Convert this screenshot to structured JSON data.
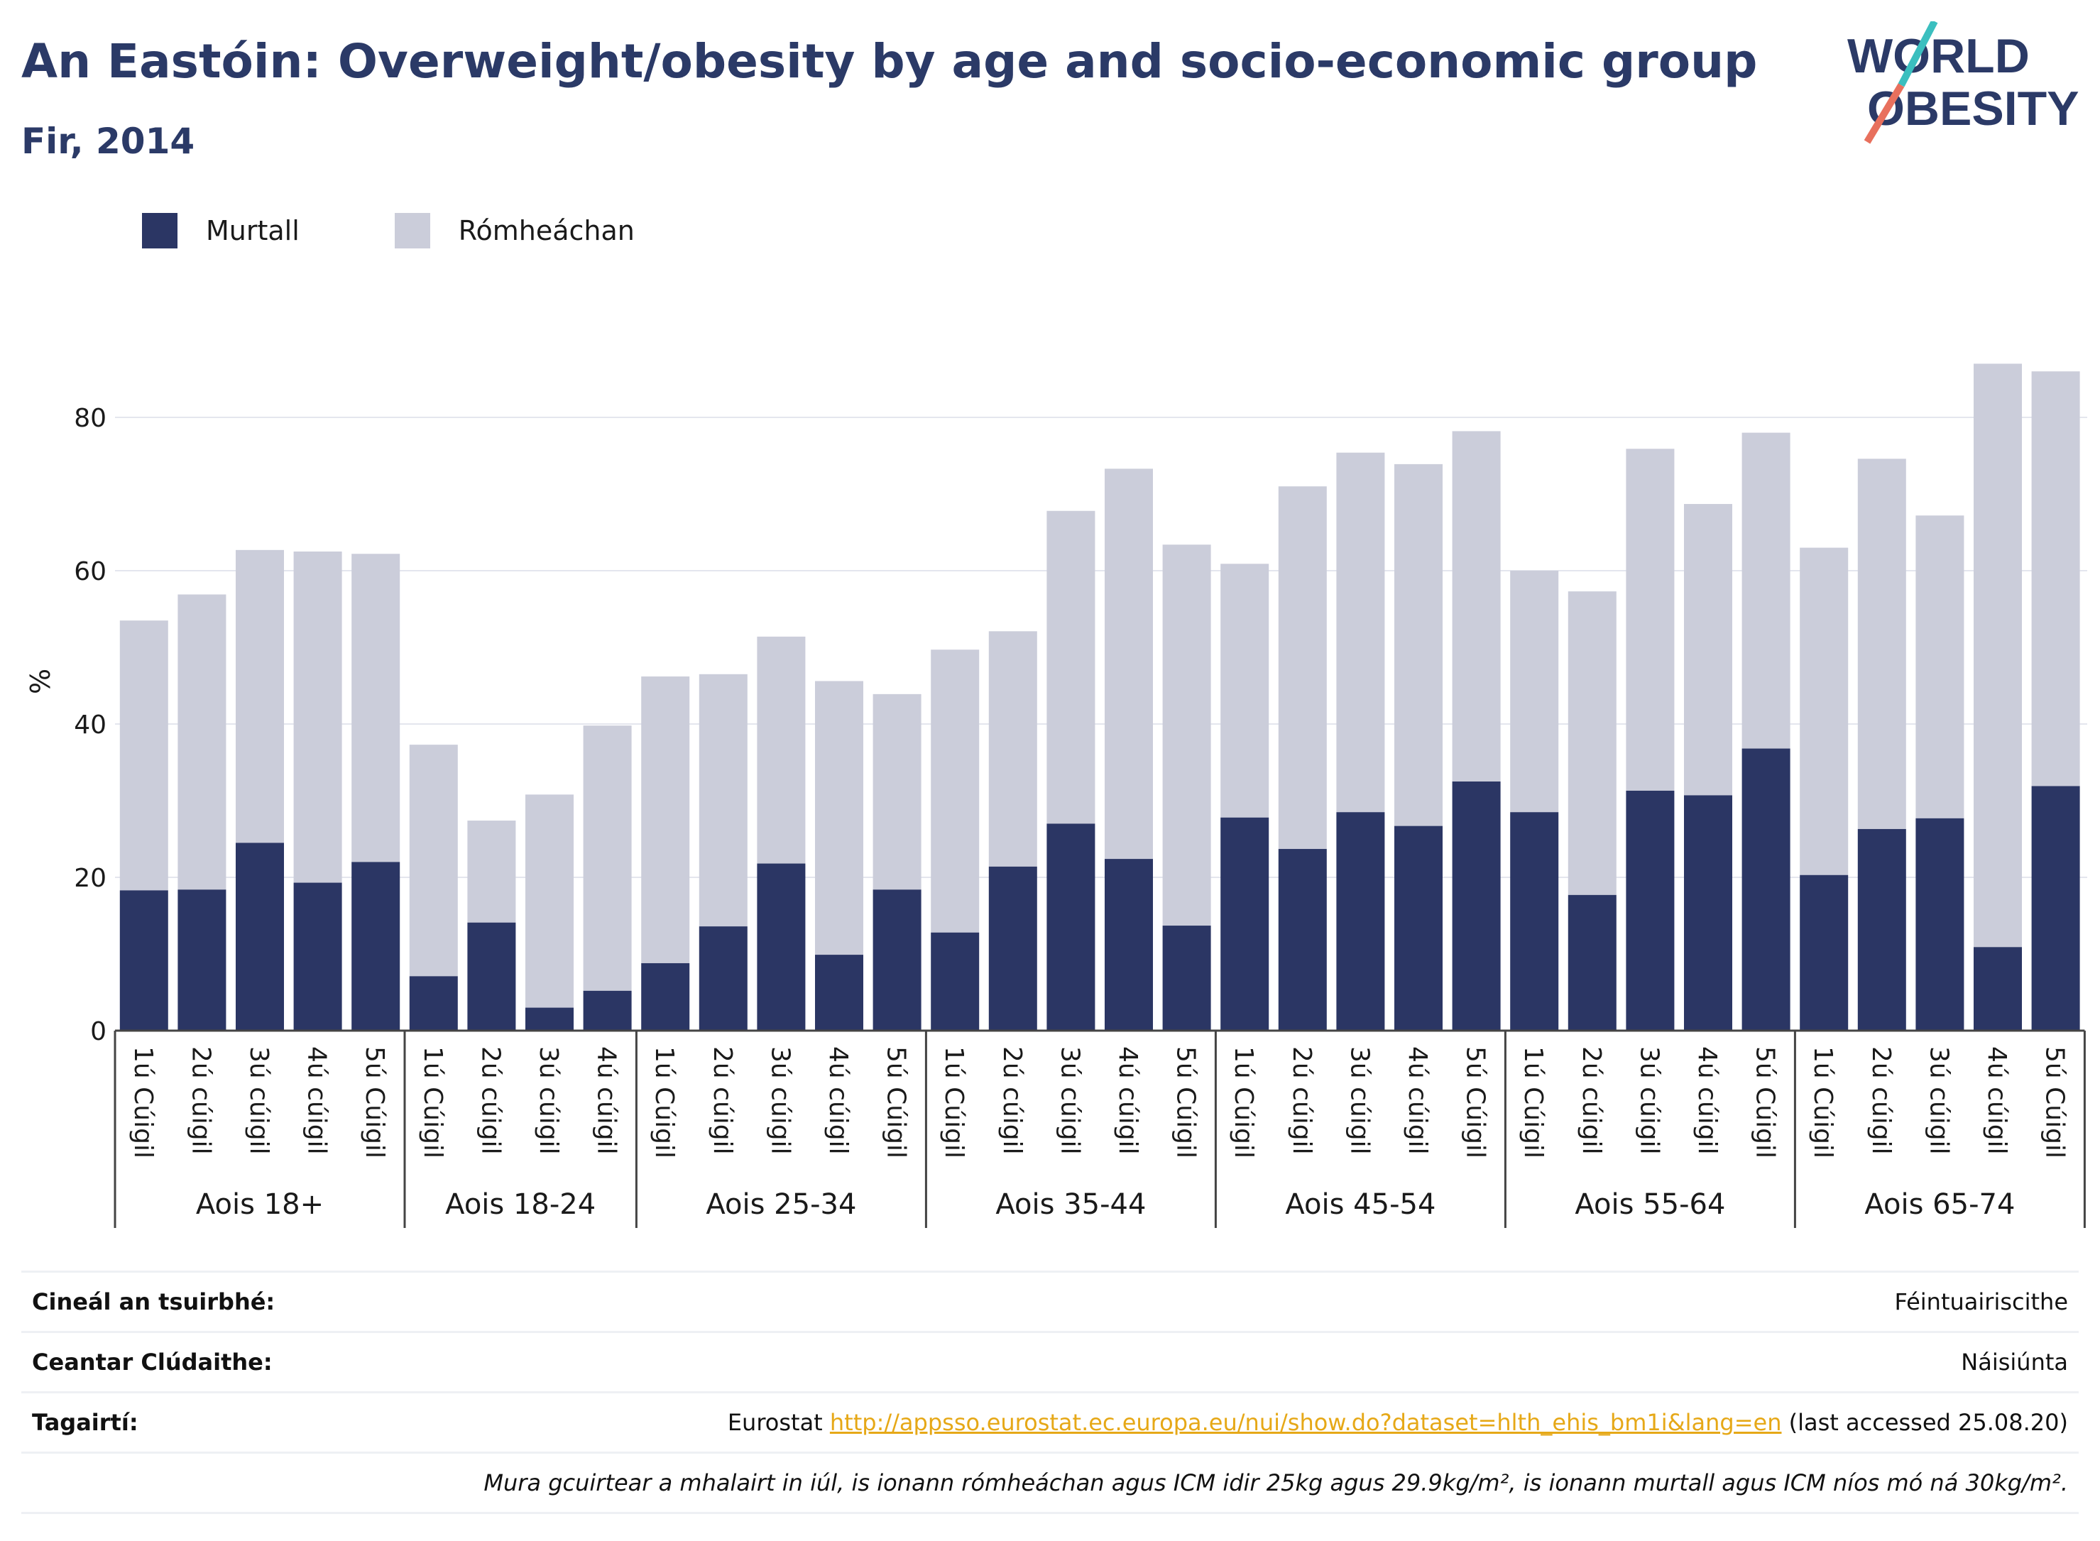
{
  "header": {
    "title": "An Eastóin: Overweight/obesity by age and socio-economic group",
    "subtitle": "Fir, 2014"
  },
  "logo": {
    "line1": "WORLD",
    "line2": "OBESITY",
    "teal": "#3bbfbf",
    "coral": "#e8705d",
    "navy": "#2b3a67"
  },
  "legend": {
    "items": [
      {
        "label": "Murtall",
        "color": "#2b3664"
      },
      {
        "label": "Rómheáchan",
        "color": "#cbcdda"
      }
    ]
  },
  "chart_data": {
    "type": "bar",
    "stacked": true,
    "ylabel": "%",
    "ylim": [
      0,
      90
    ],
    "yticks": [
      0,
      20,
      40,
      60,
      80
    ],
    "grid": true,
    "legend_position": "top-left",
    "groups": [
      {
        "label": "Aois 18+",
        "bars": [
          {
            "category": "1ú Cúigil",
            "obese": 18.3,
            "overweight": 35.2
          },
          {
            "category": "2ú cúigil",
            "obese": 18.4,
            "overweight": 38.5
          },
          {
            "category": "3ú cúigil",
            "obese": 24.5,
            "overweight": 38.2
          },
          {
            "category": "4ú cúigil",
            "obese": 19.3,
            "overweight": 43.2
          },
          {
            "category": "5ú Cúigil",
            "obese": 22.0,
            "overweight": 40.2
          }
        ]
      },
      {
        "label": "Aois 18-24",
        "bars": [
          {
            "category": "1ú Cúigil",
            "obese": 7.1,
            "overweight": 30.2
          },
          {
            "category": "2ú cúigil",
            "obese": 14.1,
            "overweight": 13.3
          },
          {
            "category": "3ú cúigil",
            "obese": 3.0,
            "overweight": 27.8
          },
          {
            "category": "4ú cúigil",
            "obese": 5.2,
            "overweight": 34.6
          }
        ]
      },
      {
        "label": "Aois 25-34",
        "bars": [
          {
            "category": "1ú Cúigil",
            "obese": 8.8,
            "overweight": 37.4
          },
          {
            "category": "2ú cúigil",
            "obese": 13.6,
            "overweight": 32.9
          },
          {
            "category": "3ú cúigil",
            "obese": 21.8,
            "overweight": 29.6
          },
          {
            "category": "4ú cúigil",
            "obese": 9.9,
            "overweight": 35.7
          },
          {
            "category": "5ú Cúigil",
            "obese": 18.4,
            "overweight": 25.5
          }
        ]
      },
      {
        "label": "Aois 35-44",
        "bars": [
          {
            "category": "1ú Cúigil",
            "obese": 12.8,
            "overweight": 36.9
          },
          {
            "category": "2ú cúigil",
            "obese": 21.4,
            "overweight": 30.7
          },
          {
            "category": "3ú cúigil",
            "obese": 27.0,
            "overweight": 40.8
          },
          {
            "category": "4ú cúigil",
            "obese": 22.4,
            "overweight": 50.9
          },
          {
            "category": "5ú Cúigil",
            "obese": 13.7,
            "overweight": 49.7
          }
        ]
      },
      {
        "label": "Aois 45-54",
        "bars": [
          {
            "category": "1ú Cúigil",
            "obese": 27.8,
            "overweight": 33.1
          },
          {
            "category": "2ú cúigil",
            "obese": 23.7,
            "overweight": 47.3
          },
          {
            "category": "3ú cúigil",
            "obese": 28.5,
            "overweight": 46.9
          },
          {
            "category": "4ú cúigil",
            "obese": 26.7,
            "overweight": 47.2
          },
          {
            "category": "5ú Cúigil",
            "obese": 32.5,
            "overweight": 45.7
          }
        ]
      },
      {
        "label": "Aois 55-64",
        "bars": [
          {
            "category": "1ú Cúigil",
            "obese": 28.5,
            "overweight": 31.5
          },
          {
            "category": "2ú cúigil",
            "obese": 17.7,
            "overweight": 39.6
          },
          {
            "category": "3ú cúigil",
            "obese": 31.3,
            "overweight": 44.6
          },
          {
            "category": "4ú cúigil",
            "obese": 30.7,
            "overweight": 38.0
          },
          {
            "category": "5ú Cúigil",
            "obese": 36.8,
            "overweight": 41.2
          }
        ]
      },
      {
        "label": "Aois 65-74",
        "bars": [
          {
            "category": "1ú Cúigil",
            "obese": 20.3,
            "overweight": 42.7
          },
          {
            "category": "2ú cúigil",
            "obese": 26.3,
            "overweight": 48.3
          },
          {
            "category": "3ú cúigil",
            "obese": 27.7,
            "overweight": 39.5
          },
          {
            "category": "4ú cúigil",
            "obese": 10.9,
            "overweight": 76.1
          },
          {
            "category": "5ú Cúigil",
            "obese": 31.9,
            "overweight": 54.1
          }
        ]
      }
    ]
  },
  "info": {
    "survey_type_label": "Cineál an tsuirbhé:",
    "survey_type_value": "Féintuairiscithe",
    "coverage_label": "Ceantar Clúdaithe:",
    "coverage_value": "Náisiúnta",
    "references_label": "Tagairtí:",
    "references_source": "Eurostat ",
    "references_url": "http://appsso.eurostat.ec.europa.eu/nui/show.do?dataset=hlth_ehis_bm1i&lang=en",
    "references_accessed": " (last accessed 25.08.20)",
    "note": "Mura gcuirtear a mhalairt in iúl, is ionann rómheáchan agus ICM idir 25kg agus 29.9kg/m², is ionann murtall agus ICM níos mó ná 30kg/m²."
  }
}
